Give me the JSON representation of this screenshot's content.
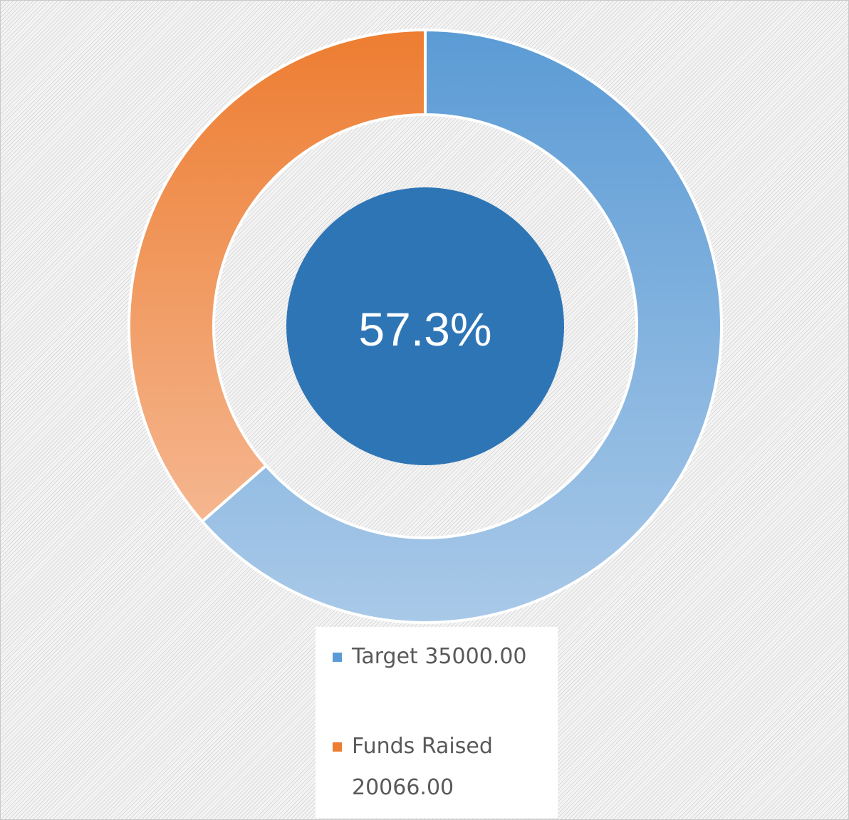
{
  "chart_data": {
    "type": "pie",
    "subtype": "doughnut",
    "center_label": "57.3%",
    "slices": [
      {
        "name": "Target 35000.00",
        "value": 35000.0,
        "color": "#5b9bd5"
      },
      {
        "name": "Funds Raised 20066.00",
        "value": 20066.0,
        "color": "#ed7d31"
      }
    ],
    "legend": {
      "placement": "bottom",
      "entries": [
        {
          "label": "Target 35000.00",
          "color": "#5b9bd5"
        },
        {
          "label": "Funds Raised 20066.00",
          "color": "#ed7d31"
        }
      ]
    },
    "center_circle_color": "#2e75b6"
  }
}
